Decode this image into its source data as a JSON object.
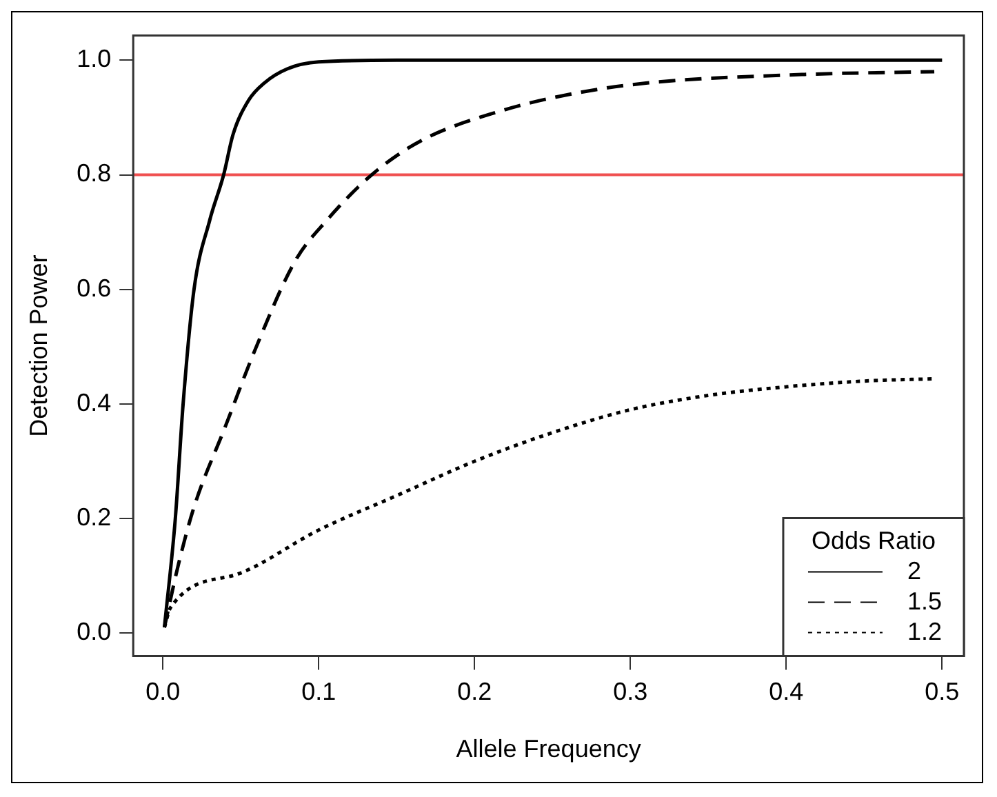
{
  "chart_data": {
    "type": "line",
    "xlabel": "Allele Frequency",
    "ylabel": "Detection Power",
    "legend_title": "Odds Ratio",
    "legend": "bottom right",
    "grid": false,
    "marker": "none",
    "xlim": [
      -0.019,
      0.514
    ],
    "ylim": [
      -0.04,
      1.043
    ],
    "xticks": [
      {
        "value": 0,
        "label": "0.0"
      },
      0.1,
      0.2,
      0.3,
      0.4,
      0.5
    ],
    "yticks": [
      {
        "value": 0,
        "label": "0.0"
      },
      0.2,
      0.4,
      0.6,
      0.8,
      {
        "value": 1,
        "label": "1.0"
      }
    ],
    "series": [
      {
        "name": "2",
        "color": "#000000",
        "line_style": "solid",
        "x": [
          0.001,
          0.008,
          0.013,
          0.02,
          0.03,
          0.039,
          0.045,
          0.055,
          0.065,
          0.08,
          0.1,
          0.15,
          0.5
        ],
        "values": [
          0.01,
          0.2,
          0.4,
          0.6,
          0.72,
          0.8,
          0.87,
          0.93,
          0.96,
          0.985,
          0.997,
          1,
          1
        ]
      },
      {
        "name": "1.5",
        "color": "#000000",
        "line_style": "dashed",
        "x": [
          0.001,
          0.01,
          0.02,
          0.04,
          0.06,
          0.085,
          0.105,
          0.134,
          0.166,
          0.215,
          0.26,
          0.31,
          0.41,
          0.495
        ],
        "values": [
          0.01,
          0.12,
          0.22,
          0.36,
          0.5,
          0.65,
          0.72,
          0.8,
          0.86,
          0.91,
          0.94,
          0.96,
          0.975,
          0.98
        ]
      },
      {
        "name": "1.2",
        "color": "#000000",
        "line_style": "dotted",
        "x": [
          0.001,
          0.005,
          0.05,
          0.1,
          0.15,
          0.2,
          0.25,
          0.3,
          0.35,
          0.4,
          0.45,
          0.495
        ],
        "values": [
          0.01,
          0.045,
          0.105,
          0.18,
          0.24,
          0.3,
          0.35,
          0.39,
          0.415,
          0.43,
          0.44,
          0.444
        ]
      }
    ],
    "ref_lines": [
      {
        "axis": "y",
        "value": 0.8,
        "color": "#f05050"
      }
    ]
  }
}
